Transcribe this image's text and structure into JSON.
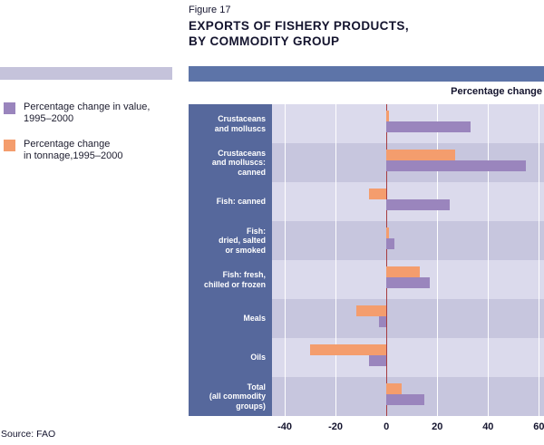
{
  "figure": {
    "label": "Figure 17",
    "title_line1": "EXPORTS OF FISHERY PRODUCTS,",
    "title_line2": "BY COMMODITY GROUP"
  },
  "header": {
    "axis_title": "Percentage change"
  },
  "legend": {
    "value": {
      "line1": "Percentage change in value,",
      "line2": "1995–2000"
    },
    "tonnage": {
      "line1": "Percentage change",
      "line2": "in tonnage,1995–2000"
    }
  },
  "source": "Source: FAO",
  "colors": {
    "value_bar": "#9a85bd",
    "tonnage_bar": "#f49d6d",
    "label_panel": "#56689c",
    "band_left": "#c5c3db",
    "band_right": "#5d74a8",
    "stripe_light": "#dbdaec",
    "stripe_dark": "#c7c6de",
    "zero_line": "#a63d40"
  },
  "chart_data": {
    "type": "bar",
    "orientation": "horizontal",
    "title": "Exports of fishery products, by commodity group",
    "xlabel": "Percentage change",
    "xlim": [
      -40,
      60
    ],
    "xticks": [
      -40,
      -20,
      0,
      20,
      40,
      60
    ],
    "grid": true,
    "legend_position": "left",
    "categories": [
      {
        "label": "Crustaceans and molluscs",
        "display": "Crustaceans\nand molluscs"
      },
      {
        "label": "Crustaceans and molluscs: canned",
        "display": "Crustaceans\nand molluscs:\ncanned"
      },
      {
        "label": "Fish: canned",
        "display": "Fish: canned"
      },
      {
        "label": "Fish: dried, salted or smoked",
        "display": "Fish:\ndried, salted\nor smoked"
      },
      {
        "label": "Fish: fresh, chilled or frozen",
        "display": "Fish: fresh,\nchilled or frozen"
      },
      {
        "label": "Meals",
        "display": "Meals"
      },
      {
        "label": "Oils",
        "display": "Oils"
      },
      {
        "label": "Total (all commodity groups)",
        "display": "Total\n(all commodity\ngroups)"
      }
    ],
    "series": [
      {
        "name": "Percentage change in value, 1995–2000",
        "color": "#9a85bd",
        "values": [
          33,
          55,
          25,
          3,
          17,
          -3,
          -7,
          15
        ]
      },
      {
        "name": "Percentage change in tonnage, 1995–2000",
        "color": "#f49d6d",
        "values": [
          1,
          27,
          -7,
          1,
          13,
          -12,
          -30,
          6
        ]
      }
    ]
  }
}
